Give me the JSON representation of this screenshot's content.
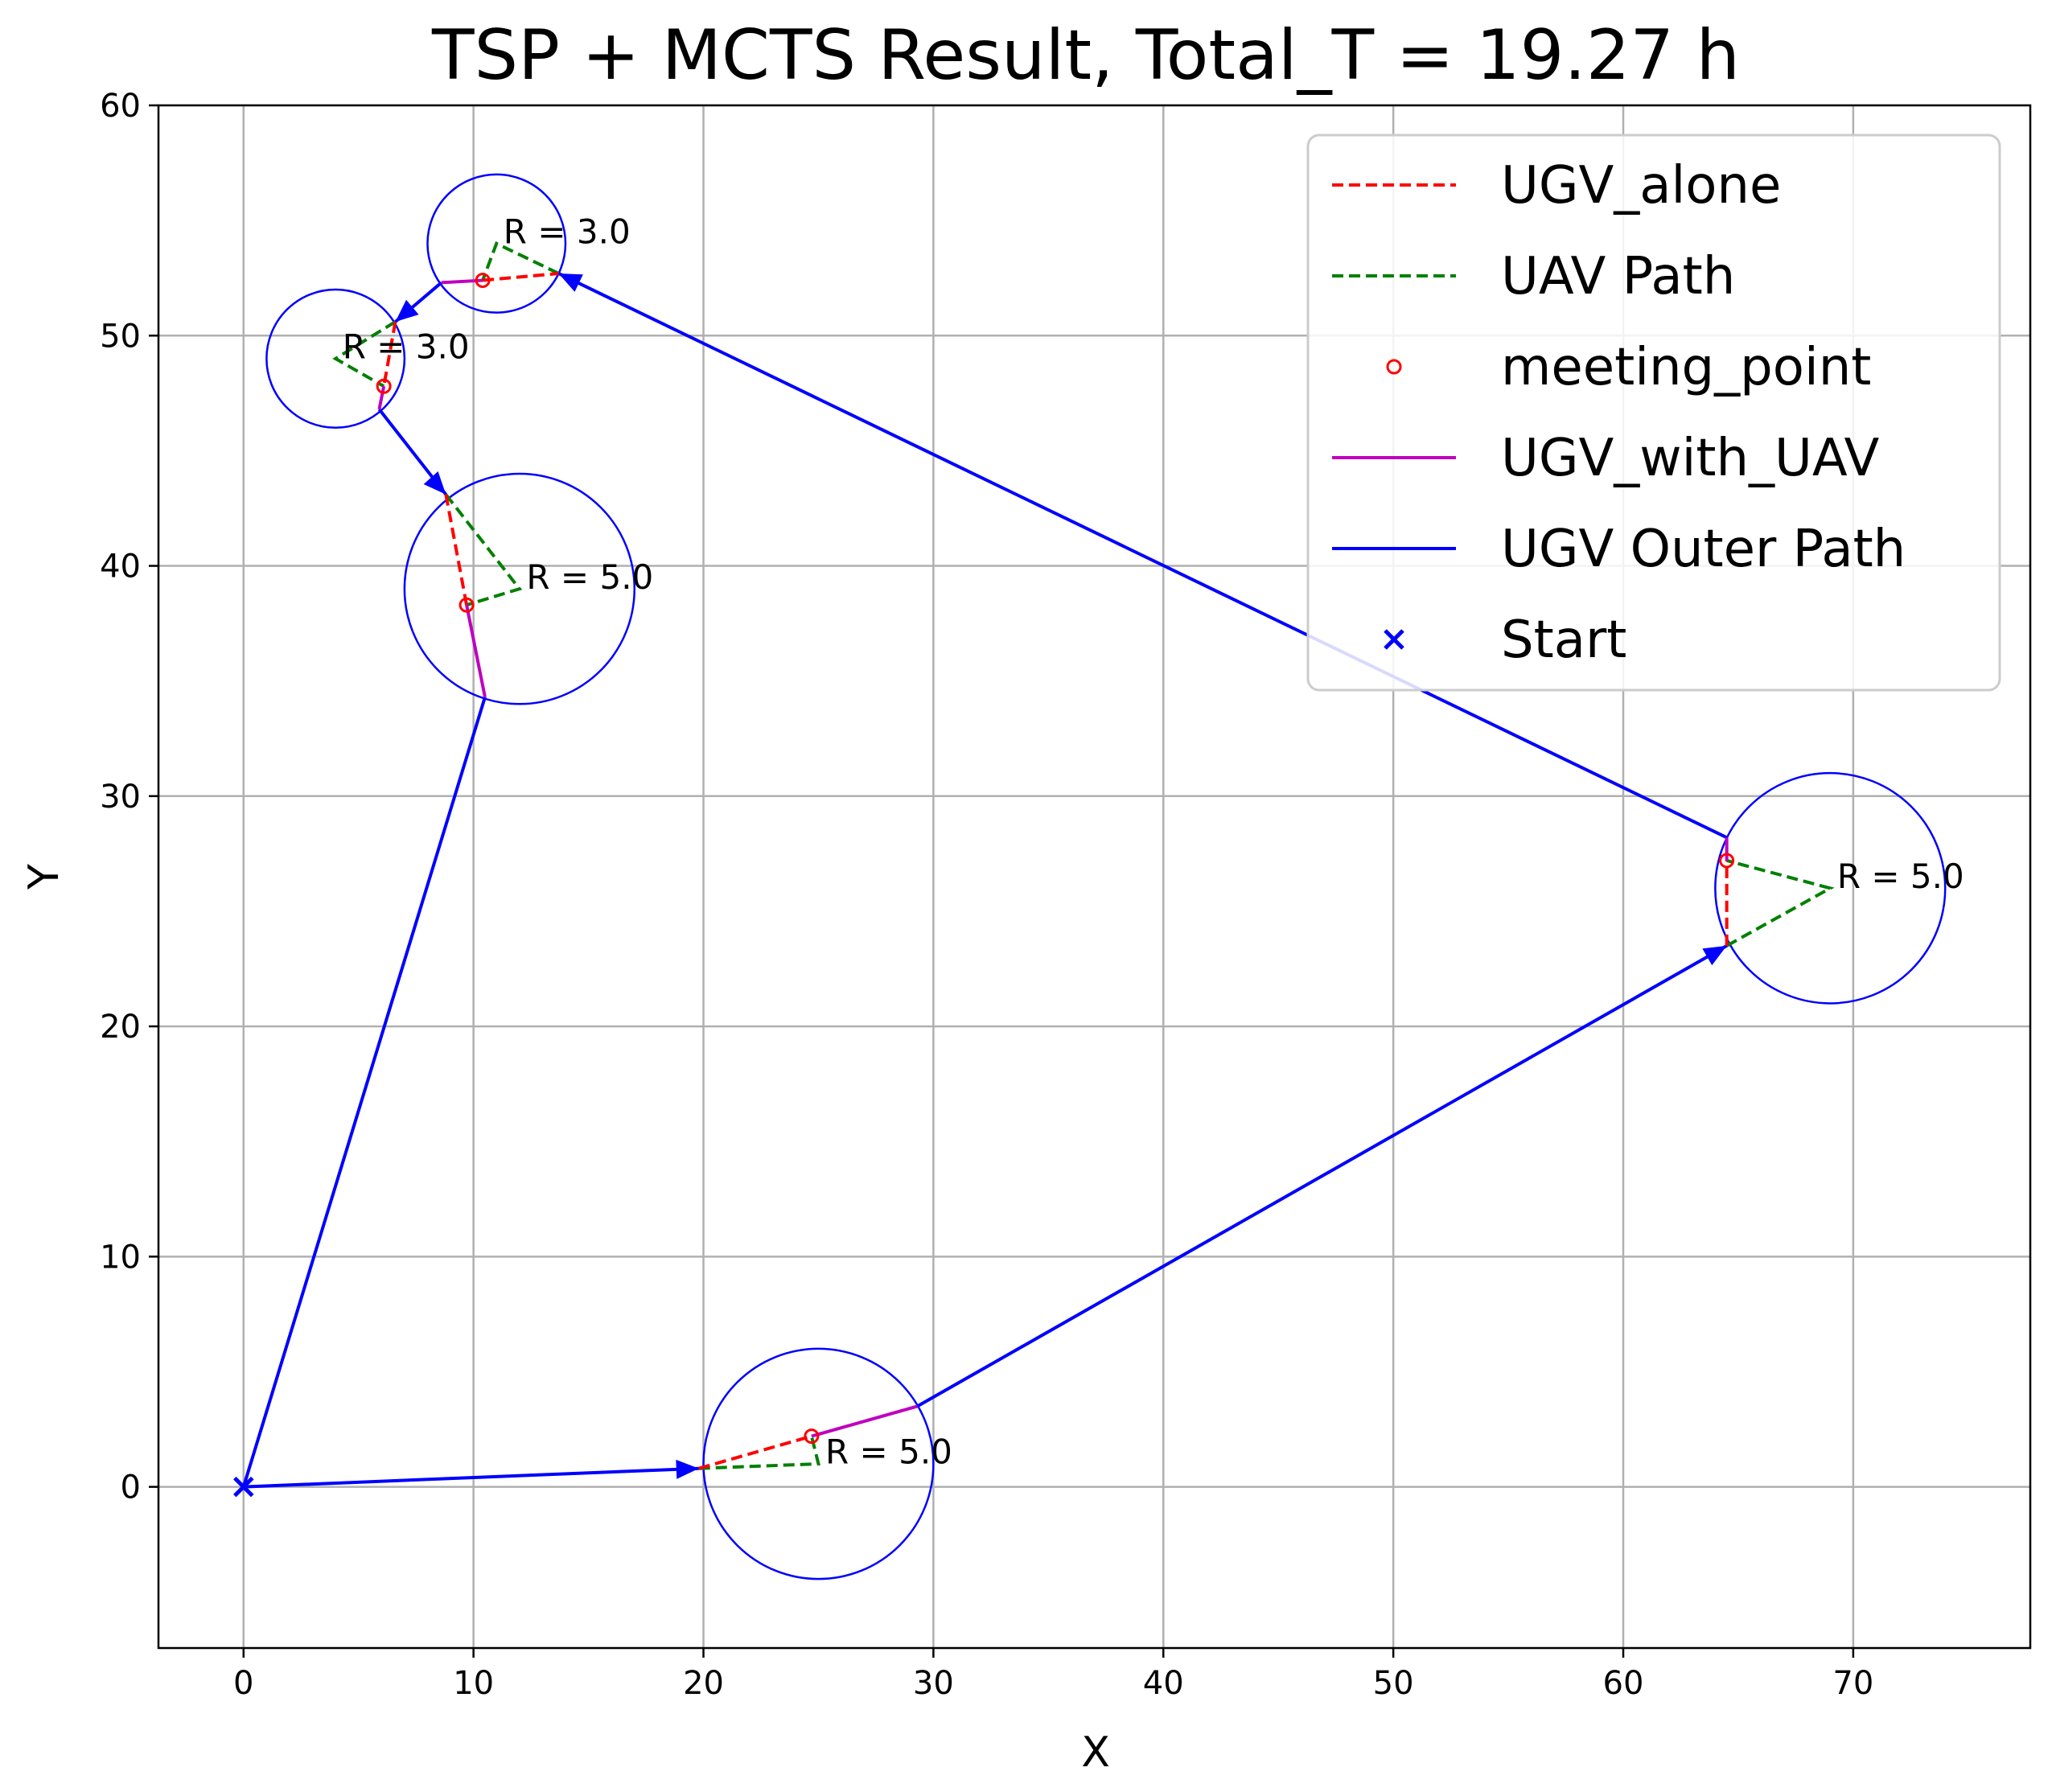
{
  "chart_data": {
    "type": "line",
    "title": "TSP + MCTS Result, Total_T = 19.27 h",
    "xlabel": "X",
    "ylabel": "Y",
    "xlim": [
      -3.7,
      77.7
    ],
    "ylim": [
      -7,
      60
    ],
    "xticks": [
      0,
      10,
      20,
      30,
      40,
      50,
      60,
      70
    ],
    "yticks": [
      0,
      10,
      20,
      30,
      40,
      50,
      60
    ],
    "grid": true,
    "legend_position": "top-right",
    "colors": {
      "ugv_outer": "#0000ff",
      "ugv_alone": "#ff0000",
      "uav": "#008000",
      "ugv_with_uav": "#bf00bf",
      "meeting_point": "#ff0000",
      "circle": "#0000ff",
      "grid": "#b0b0b0"
    },
    "legend": [
      {
        "label": "UGV_alone",
        "style": "dashed-red"
      },
      {
        "label": "UAV Path",
        "style": "dashed-green"
      },
      {
        "label": "meeting_point",
        "style": "circle-red"
      },
      {
        "label": "UGV_with_UAV",
        "style": "solid-magenta"
      },
      {
        "label": "UGV Outer Path",
        "style": "solid-blue"
      },
      {
        "label": "Start",
        "style": "x-blue"
      }
    ],
    "start": {
      "x": 0,
      "y": 0
    },
    "circles": [
      {
        "cx": 25,
        "cy": 1,
        "r": 5,
        "label": "R = 5.0",
        "lx": 25.3,
        "ly": 1.5
      },
      {
        "cx": 69,
        "cy": 26,
        "r": 5,
        "label": "R = 5.0",
        "lx": 69.3,
        "ly": 26.5
      },
      {
        "cx": 11,
        "cy": 54,
        "r": 3,
        "label": "R = 3.0",
        "lx": 11.3,
        "ly": 54.5
      },
      {
        "cx": 4,
        "cy": 49,
        "r": 3,
        "label": "R = 3.0",
        "lx": 4.3,
        "ly": 49.5
      },
      {
        "cx": 12,
        "cy": 39,
        "r": 5,
        "label": "R = 5.0",
        "lx": 12.3,
        "ly": 39.5
      }
    ],
    "ugv_outer_segments": [
      [
        [
          0,
          0
        ],
        [
          19.8,
          0.8
        ]
      ],
      [
        [
          29.3,
          3.5
        ],
        [
          64.5,
          23.5
        ]
      ],
      [
        [
          64.5,
          28.2
        ],
        [
          13.7,
          52.7
        ]
      ],
      [
        [
          8.6,
          52.3
        ],
        [
          6.6,
          50.6
        ]
      ],
      [
        [
          5.9,
          46.8
        ],
        [
          8.8,
          43.1
        ]
      ],
      [
        [
          10.5,
          34.3
        ],
        [
          0,
          0
        ]
      ]
    ],
    "ugv_outer_arrows": [
      {
        "x": 19.8,
        "y": 0.8,
        "dir": [
          1,
          0.04
        ]
      },
      {
        "x": 64.5,
        "y": 23.5,
        "dir": [
          1,
          0.57
        ]
      },
      {
        "x": 13.7,
        "y": 52.7,
        "dir": [
          -1,
          0.48
        ]
      },
      {
        "x": 6.6,
        "y": 50.6,
        "dir": [
          -1,
          -0.85
        ]
      },
      {
        "x": 8.8,
        "y": 43.1,
        "dir": [
          0.9,
          -1
        ]
      }
    ],
    "ugv_alone_segments": [
      [
        [
          19.8,
          0.8
        ],
        [
          24.7,
          2.2
        ]
      ],
      [
        [
          64.5,
          23.5
        ],
        [
          64.5,
          27.2
        ]
      ],
      [
        [
          10.4,
          52.4
        ],
        [
          13.7,
          52.7
        ]
      ],
      [
        [
          6.6,
          50.6
        ],
        [
          6.1,
          47.8
        ]
      ],
      [
        [
          8.8,
          43.1
        ],
        [
          9.7,
          38.3
        ]
      ]
    ],
    "ugv_with_uav_segments": [
      [
        [
          24.7,
          2.2
        ],
        [
          29.3,
          3.5
        ]
      ],
      [
        [
          64.5,
          27.2
        ],
        [
          64.5,
          28.2
        ]
      ],
      [
        [
          10.4,
          52.4
        ],
        [
          8.6,
          52.3
        ]
      ],
      [
        [
          6.1,
          47.8
        ],
        [
          5.9,
          46.8
        ]
      ],
      [
        [
          9.7,
          38.3
        ],
        [
          10.5,
          34.3
        ]
      ]
    ],
    "uav_paths": [
      [
        [
          19.8,
          0.8
        ],
        [
          25,
          1
        ],
        [
          24.7,
          2.2
        ]
      ],
      [
        [
          64.5,
          23.5
        ],
        [
          69,
          26
        ],
        [
          64.5,
          27.2
        ]
      ],
      [
        [
          13.7,
          52.7
        ],
        [
          11,
          54
        ],
        [
          10.4,
          52.4
        ]
      ],
      [
        [
          6.6,
          50.6
        ],
        [
          4,
          49
        ],
        [
          6.1,
          47.8
        ]
      ],
      [
        [
          8.8,
          43.1
        ],
        [
          12,
          39
        ],
        [
          9.7,
          38.3
        ]
      ]
    ],
    "meeting_points": [
      {
        "x": 24.7,
        "y": 2.2
      },
      {
        "x": 64.5,
        "y": 27.2
      },
      {
        "x": 10.4,
        "y": 52.4
      },
      {
        "x": 6.1,
        "y": 47.8
      },
      {
        "x": 9.7,
        "y": 38.3
      }
    ]
  }
}
